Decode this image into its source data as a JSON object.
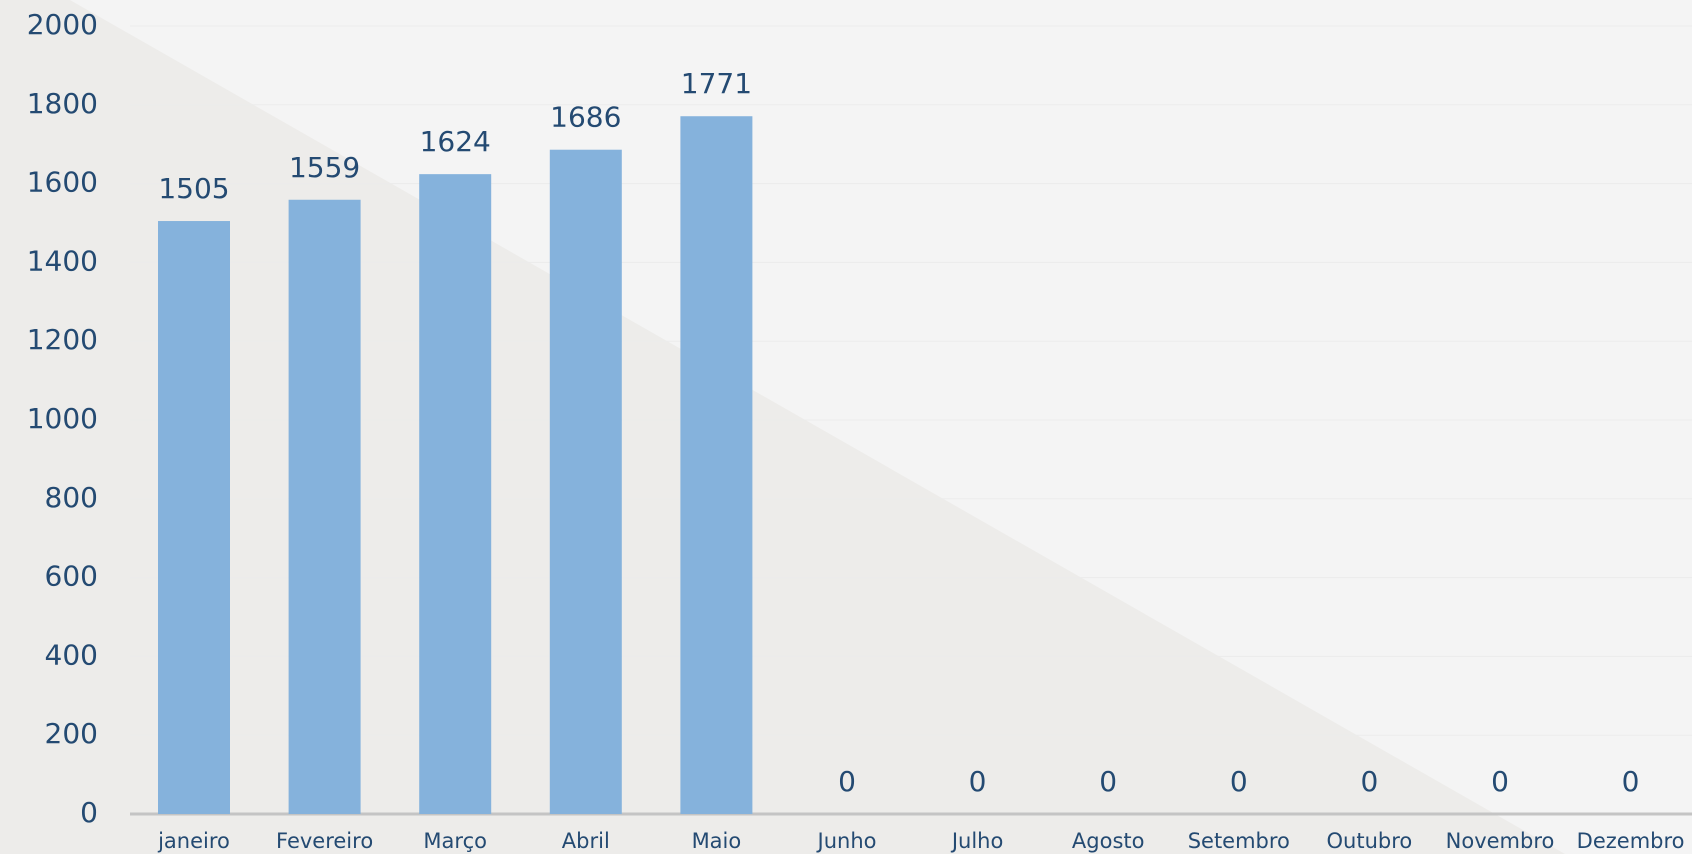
{
  "chart_data": {
    "type": "bar",
    "categories": [
      "janeiro",
      "Fevereiro",
      "Março",
      "Abril",
      "Maio",
      "Junho",
      "Julho",
      "Agosto",
      "Setembro",
      "Outubro",
      "Novembro",
      "Dezembro"
    ],
    "values": [
      1505,
      1559,
      1624,
      1686,
      1771,
      0,
      0,
      0,
      0,
      0,
      0,
      0
    ],
    "color": "#85b2dc",
    "ylim": [
      0,
      2000
    ],
    "yticks": [
      0,
      200,
      400,
      600,
      800,
      1000,
      1200,
      1400,
      1600,
      1800,
      2000
    ],
    "grid": true
  }
}
